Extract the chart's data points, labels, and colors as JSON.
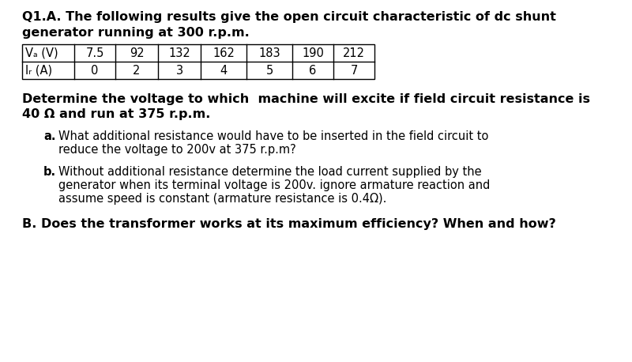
{
  "title_line1": "Q1.A. The following results give the open circuit characteristic of dc shunt",
  "title_line2": "generator running at 300 r.p.m.",
  "table_headers": [
    "Vₐ (V)",
    "7.5",
    "92",
    "132",
    "162",
    "183",
    "190",
    "212"
  ],
  "table_row2": [
    "Iᵣ (A)",
    "0",
    "2",
    "3",
    "4",
    "5",
    "6",
    "7"
  ],
  "main_q_line1": "Determine the voltage to which  machine will excite if field circuit resistance is",
  "main_q_line2": "40 Ω and run at 375 r.p.m.",
  "sub_a_label": "a.",
  "sub_a_text_line1": "What additional resistance would have to be inserted in the field circuit to",
  "sub_a_text_line2": "reduce the voltage to 200v at 375 r.p.m?",
  "sub_b_label": "b.",
  "sub_b_text_line1": "Without additional resistance determine the load current supplied by the",
  "sub_b_text_line2": "generator when its terminal voltage is 200v. ignore armature reaction and",
  "sub_b_text_line3": "assume speed is constant (armature resistance is 0.4Ω).",
  "part_B": "B. Does the transformer works at its maximum efficiency? When and how?",
  "bg_color": "#ffffff",
  "text_color": "#000000"
}
